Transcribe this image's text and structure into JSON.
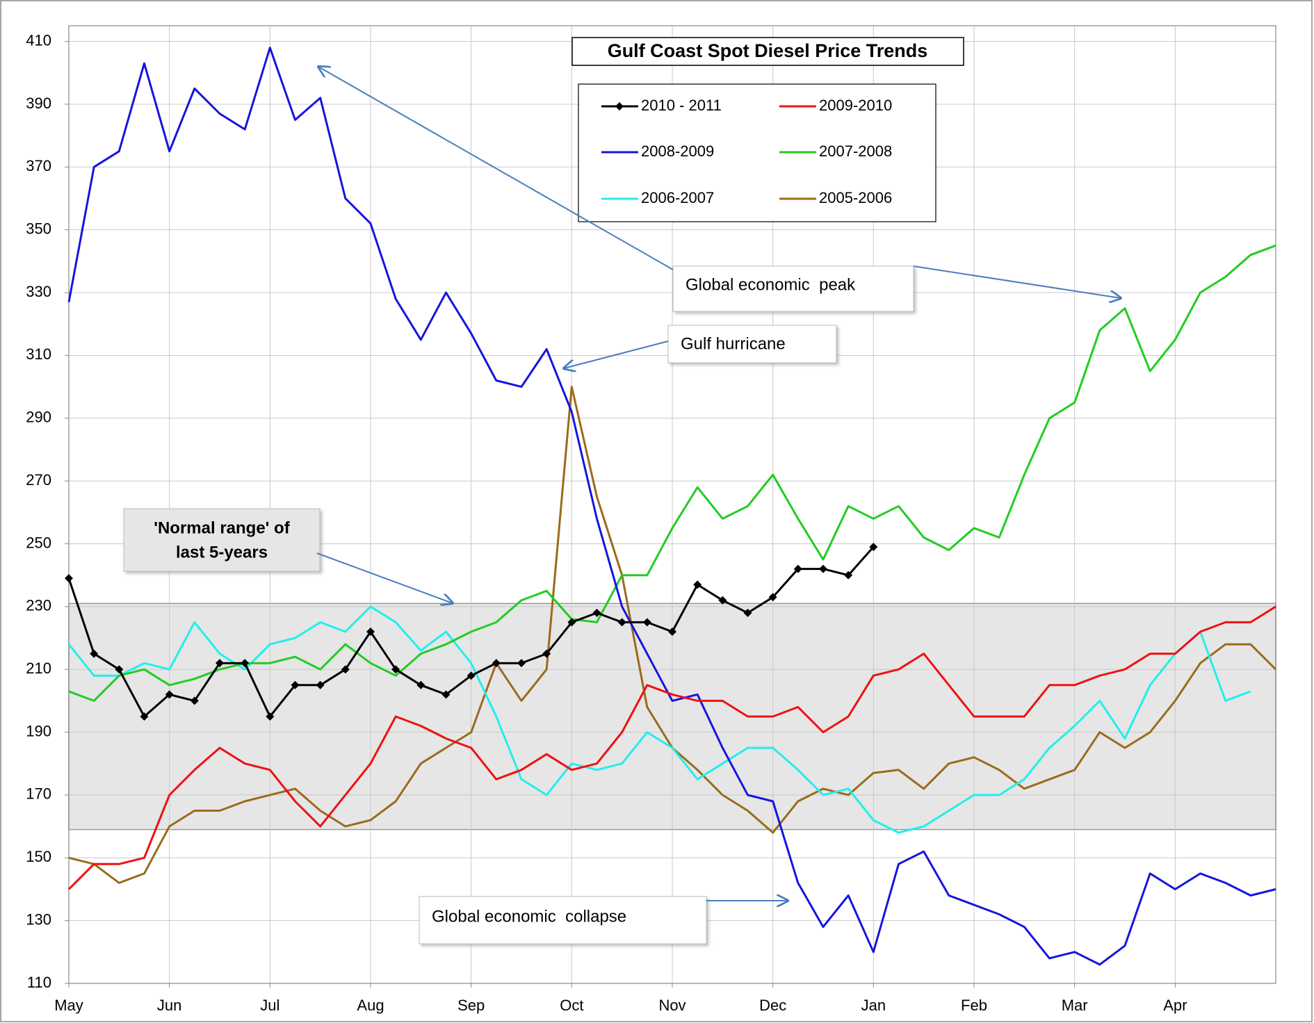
{
  "chart_data": {
    "type": "line",
    "title": "Gulf Coast Spot Diesel Price Trends",
    "categories": [
      "May",
      null,
      null,
      null,
      "Jun",
      null,
      null,
      null,
      "Jul",
      null,
      null,
      null,
      "Aug",
      null,
      null,
      null,
      "Sep",
      null,
      null,
      null,
      "Oct",
      null,
      null,
      null,
      "Nov",
      null,
      null,
      null,
      "Dec",
      null,
      null,
      null,
      "Jan",
      null,
      null,
      null,
      "Feb",
      null,
      null,
      null,
      "Mar",
      null,
      null,
      null,
      "Apr",
      null,
      null,
      null,
      null
    ],
    "ylim": [
      110,
      415
    ],
    "yticks": [
      110,
      130,
      150,
      170,
      190,
      210,
      230,
      250,
      270,
      290,
      310,
      330,
      350,
      370,
      390,
      410
    ],
    "grid": true,
    "normal_range": [
      159,
      231
    ],
    "normal_range_label": [
      "'Normal range' of",
      "last 5-years"
    ],
    "annotations": [
      "Global economic  peak",
      "Gulf hurricane",
      "Global economic  collapse"
    ],
    "series": [
      {
        "name": "2010 - 2011",
        "color": "#000000",
        "markers": true,
        "values": [
          239,
          215,
          210,
          195,
          202,
          200,
          212,
          212,
          195,
          205,
          205,
          210,
          222,
          210,
          205,
          202,
          208,
          212,
          212,
          215,
          225,
          228,
          225,
          225,
          222,
          237,
          232,
          228,
          233,
          242,
          242,
          240,
          249,
          null,
          null,
          null,
          null,
          null,
          null,
          null,
          null,
          null,
          null,
          null,
          null,
          null,
          null,
          null,
          null
        ]
      },
      {
        "name": "2009-2010",
        "color": "#ee1111",
        "values": [
          140,
          148,
          148,
          150,
          170,
          178,
          185,
          180,
          178,
          168,
          160,
          170,
          180,
          195,
          192,
          188,
          185,
          175,
          178,
          183,
          178,
          180,
          190,
          205,
          202,
          200,
          200,
          195,
          195,
          198,
          190,
          195,
          208,
          210,
          215,
          205,
          195,
          195,
          195,
          205,
          205,
          208,
          210,
          215,
          215,
          222,
          225,
          225,
          230
        ]
      },
      {
        "name": "2008-2009",
        "color": "#1515dd",
        "values": [
          327,
          370,
          375,
          403,
          375,
          395,
          387,
          382,
          408,
          385,
          392,
          360,
          352,
          328,
          315,
          330,
          317,
          302,
          300,
          312,
          292,
          258,
          230,
          215,
          200,
          202,
          185,
          170,
          168,
          142,
          128,
          138,
          120,
          148,
          152,
          138,
          135,
          132,
          128,
          118,
          120,
          116,
          122,
          145,
          140,
          145,
          142,
          138,
          140
        ]
      },
      {
        "name": "2007-2008",
        "color": "#22cc22",
        "values": [
          203,
          200,
          208,
          210,
          205,
          207,
          210,
          212,
          212,
          214,
          210,
          218,
          212,
          208,
          215,
          218,
          222,
          225,
          232,
          235,
          226,
          225,
          240,
          240,
          255,
          268,
          258,
          262,
          272,
          258,
          245,
          262,
          258,
          262,
          252,
          248,
          255,
          252,
          272,
          290,
          295,
          318,
          325,
          305,
          315,
          330,
          335,
          342,
          345
        ]
      },
      {
        "name": "2006-2007",
        "color": "#22eeee",
        "values": [
          218,
          208,
          208,
          212,
          210,
          225,
          215,
          210,
          218,
          220,
          225,
          222,
          230,
          225,
          216,
          222,
          212,
          195,
          175,
          170,
          180,
          178,
          180,
          190,
          185,
          175,
          180,
          185,
          185,
          178,
          170,
          172,
          162,
          158,
          160,
          165,
          170,
          170,
          175,
          185,
          192,
          200,
          188,
          205,
          215,
          222,
          200,
          203,
          null
        ]
      },
      {
        "name": "2005-2006",
        "color": "#9b6a1a",
        "values": [
          150,
          148,
          142,
          145,
          160,
          165,
          165,
          168,
          170,
          172,
          165,
          160,
          162,
          168,
          180,
          185,
          190,
          212,
          200,
          210,
          300,
          265,
          240,
          198,
          185,
          178,
          170,
          165,
          158,
          168,
          172,
          170,
          177,
          178,
          172,
          180,
          182,
          178,
          172,
          175,
          178,
          190,
          185,
          190,
          200,
          212,
          218,
          218,
          210
        ]
      }
    ]
  }
}
